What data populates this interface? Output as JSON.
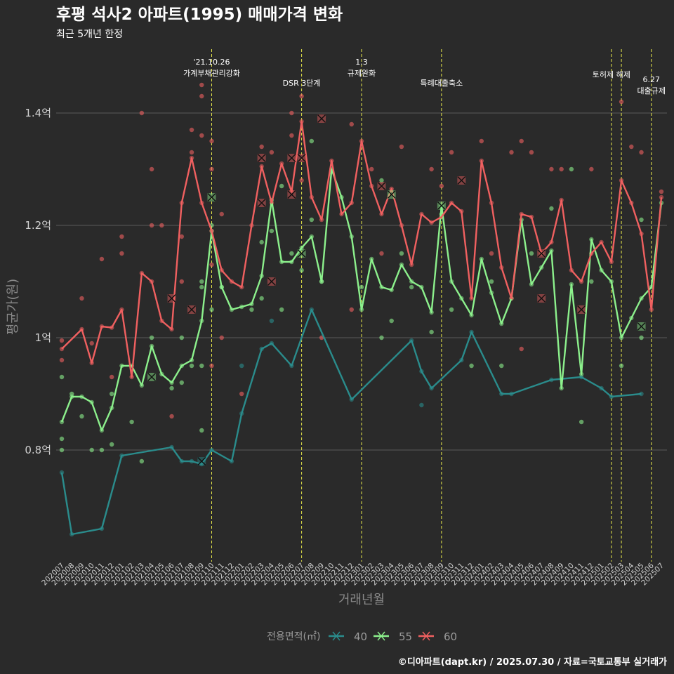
{
  "chart_data": {
    "type": "line",
    "title": "후평 석사2 아파트(1995) 매매가격 변화",
    "subtitle": "최근 5개년 한정",
    "xlabel": "거래년월",
    "ylabel": "평균가(원)",
    "ylim": [
      0.61,
      1.5
    ],
    "y_ticks": [
      {
        "value": 0.8,
        "label": "0.8억"
      },
      {
        "value": 1.0,
        "label": "1억"
      },
      {
        "value": 1.2,
        "label": "1.2억"
      },
      {
        "value": 1.4,
        "label": "1.4억"
      }
    ],
    "grid": true,
    "categories": [
      "202007",
      "202008",
      "202009",
      "202010",
      "202011",
      "202012",
      "202101",
      "202102",
      "202103",
      "202104",
      "202105",
      "202106",
      "202107",
      "202108",
      "202109",
      "202110",
      "202111",
      "202112",
      "202201",
      "202202",
      "202203",
      "202204",
      "202205",
      "202206",
      "202207",
      "202208",
      "202209",
      "202210",
      "202211",
      "202212",
      "202301",
      "202302",
      "202303",
      "202304",
      "202305",
      "202306",
      "202307",
      "202308",
      "202309",
      "202310",
      "202311",
      "202312",
      "202401",
      "202402",
      "202403",
      "202404",
      "202405",
      "202406",
      "202407",
      "202408",
      "202409",
      "202410",
      "202411",
      "202412",
      "202501",
      "202502",
      "202503",
      "202504",
      "202505",
      "202506",
      "202507"
    ],
    "legend_title": "전용면적(㎡)",
    "legend_position": "bottom",
    "series": [
      {
        "name": "40",
        "color": "#2a8c8c",
        "x": [
          "202007",
          "202008",
          "202011",
          "202101",
          "202106",
          "202107",
          "202108",
          "202109",
          "202110",
          "202112",
          "202201",
          "202203",
          "202204",
          "202206",
          "202208",
          "202212",
          "202306",
          "202307",
          "202308",
          "202311",
          "202312",
          "202403",
          "202404",
          "202408",
          "202411",
          "202501",
          "202502",
          "202505"
        ],
        "values": [
          0.76,
          0.65,
          0.66,
          0.79,
          0.805,
          0.78,
          0.78,
          0.775,
          0.8,
          0.78,
          0.865,
          0.98,
          0.99,
          0.95,
          1.05,
          0.89,
          0.995,
          0.94,
          0.91,
          0.96,
          1.01,
          0.9,
          0.9,
          0.925,
          0.93,
          0.91,
          0.895,
          0.9
        ]
      },
      {
        "name": "55",
        "color": "#8cf08c",
        "x": [
          "202007",
          "202008",
          "202009",
          "202010",
          "202011",
          "202012",
          "202101",
          "202102",
          "202103",
          "202104",
          "202105",
          "202106",
          "202107",
          "202108",
          "202109",
          "202110",
          "202111",
          "202112",
          "202201",
          "202202",
          "202203",
          "202204",
          "202205",
          "202206",
          "202207",
          "202208",
          "202209",
          "202210",
          "202211",
          "202212",
          "202301",
          "202302",
          "202303",
          "202304",
          "202305",
          "202306",
          "202307",
          "202308",
          "202309",
          "202310",
          "202311",
          "202312",
          "202401",
          "202402",
          "202403",
          "202404",
          "202405",
          "202406",
          "202407",
          "202408",
          "202409",
          "202410",
          "202411",
          "202412",
          "202501",
          "202502",
          "202503",
          "202504",
          "202505",
          "202506",
          "202507"
        ],
        "values": [
          0.85,
          0.895,
          0.895,
          0.885,
          0.835,
          0.875,
          0.95,
          0.95,
          0.915,
          0.985,
          0.935,
          0.92,
          0.95,
          0.96,
          1.03,
          1.19,
          1.09,
          1.05,
          1.055,
          1.06,
          1.11,
          1.245,
          1.135,
          1.135,
          1.16,
          1.18,
          1.1,
          1.3,
          1.25,
          1.18,
          1.05,
          1.14,
          1.09,
          1.085,
          1.13,
          1.1,
          1.09,
          1.045,
          1.235,
          1.1,
          1.07,
          1.04,
          1.14,
          1.08,
          1.025,
          1.07,
          1.21,
          1.095,
          1.125,
          1.155,
          0.91,
          1.095,
          0.935,
          1.175,
          1.12,
          1.1,
          1.0,
          1.035,
          1.07,
          1.09,
          1.24
        ]
      },
      {
        "name": "60",
        "color": "#f06060",
        "x": [
          "202007",
          "202009",
          "202010",
          "202011",
          "202012",
          "202101",
          "202102",
          "202103",
          "202104",
          "202105",
          "202106",
          "202107",
          "202108",
          "202109",
          "202110",
          "202111",
          "202112",
          "202201",
          "202202",
          "202203",
          "202204",
          "202205",
          "202206",
          "202207",
          "202208",
          "202209",
          "202210",
          "202211",
          "202212",
          "202301",
          "202302",
          "202303",
          "202304",
          "202305",
          "202306",
          "202307",
          "202308",
          "202309",
          "202310",
          "202311",
          "202312",
          "202401",
          "202402",
          "202403",
          "202404",
          "202405",
          "202406",
          "202407",
          "202408",
          "202409",
          "202410",
          "202411",
          "202412",
          "202501",
          "202502",
          "202503",
          "202504",
          "202505",
          "202506",
          "202507"
        ],
        "values": [
          0.98,
          1.015,
          0.955,
          1.02,
          1.018,
          1.05,
          0.93,
          1.115,
          1.1,
          1.03,
          1.015,
          1.24,
          1.32,
          1.24,
          1.19,
          1.12,
          1.1,
          1.09,
          1.2,
          1.305,
          1.24,
          1.31,
          1.26,
          1.385,
          1.25,
          1.21,
          1.315,
          1.22,
          1.24,
          1.35,
          1.27,
          1.22,
          1.265,
          1.2,
          1.13,
          1.22,
          1.205,
          1.215,
          1.24,
          1.225,
          1.07,
          1.315,
          1.24,
          1.125,
          1.07,
          1.22,
          1.215,
          1.15,
          1.17,
          1.245,
          1.12,
          1.1,
          1.15,
          1.17,
          1.135,
          1.28,
          1.24,
          1.185,
          1.05,
          1.25
        ]
      }
    ],
    "markers": [
      {
        "series": "40",
        "x": "202109",
        "y": 0.78
      },
      {
        "series": "55",
        "x": "202104",
        "y": 0.93
      },
      {
        "series": "55",
        "x": "202110",
        "y": 1.25
      },
      {
        "series": "55",
        "x": "202207",
        "y": 1.15
      },
      {
        "series": "55",
        "x": "202304",
        "y": 1.255
      },
      {
        "series": "55",
        "x": "202309",
        "y": 1.235
      },
      {
        "series": "55",
        "x": "202505",
        "y": 1.02
      },
      {
        "series": "60",
        "x": "202106",
        "y": 1.07
      },
      {
        "series": "60",
        "x": "202108",
        "y": 1.05
      },
      {
        "series": "60",
        "x": "202203",
        "y": 1.24
      },
      {
        "series": "60",
        "x": "202203",
        "y": 1.32
      },
      {
        "series": "60",
        "x": "202204",
        "y": 1.1
      },
      {
        "series": "60",
        "x": "202206",
        "y": 1.255
      },
      {
        "series": "60",
        "x": "202206",
        "y": 1.32
      },
      {
        "series": "60",
        "x": "202207",
        "y": 1.32
      },
      {
        "series": "60",
        "x": "202209",
        "y": 1.39
      },
      {
        "series": "60",
        "x": "202303",
        "y": 1.27
      },
      {
        "series": "60",
        "x": "202311",
        "y": 1.28
      },
      {
        "series": "60",
        "x": "202407",
        "y": 1.15
      },
      {
        "series": "60",
        "x": "202407",
        "y": 1.07
      },
      {
        "series": "60",
        "x": "202411",
        "y": 1.05
      }
    ],
    "scatter": [
      {
        "series": "40",
        "x": "202307",
        "y": 0.88
      },
      {
        "series": "40",
        "x": "202201",
        "y": 0.95
      },
      {
        "series": "40",
        "x": "202204",
        "y": 1.03
      },
      {
        "series": "55",
        "x": "202007",
        "y": 0.93
      },
      {
        "series": "55",
        "x": "202007",
        "y": 0.82
      },
      {
        "series": "55",
        "x": "202007",
        "y": 0.8
      },
      {
        "series": "55",
        "x": "202008",
        "y": 0.9
      },
      {
        "series": "55",
        "x": "202009",
        "y": 0.86
      },
      {
        "series": "55",
        "x": "202010",
        "y": 0.8
      },
      {
        "series": "55",
        "x": "202011",
        "y": 0.8
      },
      {
        "series": "55",
        "x": "202012",
        "y": 0.9
      },
      {
        "series": "55",
        "x": "202012",
        "y": 0.81
      },
      {
        "series": "55",
        "x": "202102",
        "y": 0.85
      },
      {
        "series": "55",
        "x": "202103",
        "y": 0.78
      },
      {
        "series": "55",
        "x": "202104",
        "y": 1.0
      },
      {
        "series": "55",
        "x": "202106",
        "y": 0.91
      },
      {
        "series": "55",
        "x": "202107",
        "y": 0.92
      },
      {
        "series": "55",
        "x": "202107",
        "y": 1.0
      },
      {
        "series": "55",
        "x": "202108",
        "y": 0.95
      },
      {
        "series": "55",
        "x": "202109",
        "y": 1.09
      },
      {
        "series": "55",
        "x": "202109",
        "y": 1.1
      },
      {
        "series": "55",
        "x": "202109",
        "y": 0.95
      },
      {
        "series": "55",
        "x": "202109",
        "y": 0.835
      },
      {
        "series": "55",
        "x": "202110",
        "y": 1.05
      },
      {
        "series": "55",
        "x": "202110",
        "y": 1.2
      },
      {
        "series": "55",
        "x": "202111",
        "y": 1.09
      },
      {
        "series": "55",
        "x": "202202",
        "y": 1.05
      },
      {
        "series": "55",
        "x": "202203",
        "y": 1.07
      },
      {
        "series": "55",
        "x": "202203",
        "y": 1.17
      },
      {
        "series": "55",
        "x": "202204",
        "y": 1.19
      },
      {
        "series": "55",
        "x": "202205",
        "y": 1.27
      },
      {
        "series": "55",
        "x": "202205",
        "y": 1.05
      },
      {
        "series": "55",
        "x": "202206",
        "y": 1.15
      },
      {
        "series": "55",
        "x": "202207",
        "y": 1.12
      },
      {
        "series": "55",
        "x": "202208",
        "y": 1.21
      },
      {
        "series": "55",
        "x": "202208",
        "y": 1.35
      },
      {
        "series": "55",
        "x": "202209",
        "y": 1.1
      },
      {
        "series": "55",
        "x": "202301",
        "y": 1.09
      },
      {
        "series": "55",
        "x": "202303",
        "y": 1.28
      },
      {
        "series": "55",
        "x": "202303",
        "y": 1.0
      },
      {
        "series": "55",
        "x": "202304",
        "y": 1.03
      },
      {
        "series": "55",
        "x": "202305",
        "y": 1.15
      },
      {
        "series": "55",
        "x": "202306",
        "y": 1.09
      },
      {
        "series": "55",
        "x": "202308",
        "y": 1.01
      },
      {
        "series": "55",
        "x": "202309",
        "y": 1.22
      },
      {
        "series": "55",
        "x": "202310",
        "y": 1.05
      },
      {
        "series": "55",
        "x": "202312",
        "y": 0.95
      },
      {
        "series": "55",
        "x": "202402",
        "y": 1.1
      },
      {
        "series": "55",
        "x": "202403",
        "y": 0.95
      },
      {
        "series": "55",
        "x": "202406",
        "y": 1.15
      },
      {
        "series": "55",
        "x": "202408",
        "y": 1.23
      },
      {
        "series": "55",
        "x": "202410",
        "y": 1.3
      },
      {
        "series": "55",
        "x": "202411",
        "y": 0.85
      },
      {
        "series": "55",
        "x": "202412",
        "y": 1.1
      },
      {
        "series": "55",
        "x": "202503",
        "y": 0.95
      },
      {
        "series": "55",
        "x": "202505",
        "y": 1.21
      },
      {
        "series": "55",
        "x": "202505",
        "y": 1.0
      },
      {
        "series": "60",
        "x": "202007",
        "y": 0.96
      },
      {
        "series": "60",
        "x": "202007",
        "y": 0.995
      },
      {
        "series": "60",
        "x": "202009",
        "y": 1.07
      },
      {
        "series": "60",
        "x": "202010",
        "y": 0.99
      },
      {
        "series": "60",
        "x": "202011",
        "y": 1.14
      },
      {
        "series": "60",
        "x": "202012",
        "y": 0.93
      },
      {
        "series": "60",
        "x": "202101",
        "y": 1.18
      },
      {
        "series": "60",
        "x": "202101",
        "y": 1.15
      },
      {
        "series": "60",
        "x": "202103",
        "y": 1.4
      },
      {
        "series": "60",
        "x": "202104",
        "y": 1.3
      },
      {
        "series": "60",
        "x": "202104",
        "y": 1.2
      },
      {
        "series": "60",
        "x": "202105",
        "y": 1.2
      },
      {
        "series": "60",
        "x": "202106",
        "y": 0.86
      },
      {
        "series": "60",
        "x": "202107",
        "y": 1.1
      },
      {
        "series": "60",
        "x": "202107",
        "y": 1.18
      },
      {
        "series": "60",
        "x": "202108",
        "y": 1.37
      },
      {
        "series": "60",
        "x": "202108",
        "y": 1.33
      },
      {
        "series": "60",
        "x": "202109",
        "y": 1.45
      },
      {
        "series": "60",
        "x": "202109",
        "y": 1.43
      },
      {
        "series": "60",
        "x": "202109",
        "y": 1.36
      },
      {
        "series": "60",
        "x": "202110",
        "y": 1.35
      },
      {
        "series": "60",
        "x": "202110",
        "y": 1.3
      },
      {
        "series": "60",
        "x": "202110",
        "y": 1.13
      },
      {
        "series": "60",
        "x": "202110",
        "y": 0.95
      },
      {
        "series": "60",
        "x": "202111",
        "y": 1.22
      },
      {
        "series": "60",
        "x": "202111",
        "y": 1.0
      },
      {
        "series": "60",
        "x": "202201",
        "y": 0.9
      },
      {
        "series": "60",
        "x": "202203",
        "y": 1.34
      },
      {
        "series": "60",
        "x": "202204",
        "y": 1.33
      },
      {
        "series": "60",
        "x": "202206",
        "y": 1.4
      },
      {
        "series": "60",
        "x": "202206",
        "y": 1.36
      },
      {
        "series": "60",
        "x": "202207",
        "y": 1.43
      },
      {
        "series": "60",
        "x": "202207",
        "y": 1.28
      },
      {
        "series": "60",
        "x": "202209",
        "y": 1.0
      },
      {
        "series": "60",
        "x": "202212",
        "y": 1.38
      },
      {
        "series": "60",
        "x": "202212",
        "y": 1.05
      },
      {
        "series": "60",
        "x": "202302",
        "y": 1.3
      },
      {
        "series": "60",
        "x": "202303",
        "y": 1.15
      },
      {
        "series": "60",
        "x": "202305",
        "y": 1.34
      },
      {
        "series": "60",
        "x": "202308",
        "y": 1.3
      },
      {
        "series": "60",
        "x": "202309",
        "y": 1.27
      },
      {
        "series": "60",
        "x": "202310",
        "y": 1.33
      },
      {
        "series": "60",
        "x": "202401",
        "y": 1.35
      },
      {
        "series": "60",
        "x": "202402",
        "y": 1.15
      },
      {
        "series": "60",
        "x": "202404",
        "y": 1.33
      },
      {
        "series": "60",
        "x": "202405",
        "y": 1.35
      },
      {
        "series": "60",
        "x": "202405",
        "y": 0.98
      },
      {
        "series": "60",
        "x": "202406",
        "y": 1.33
      },
      {
        "series": "60",
        "x": "202408",
        "y": 1.3
      },
      {
        "series": "60",
        "x": "202409",
        "y": 1.3
      },
      {
        "series": "60",
        "x": "202412",
        "y": 1.3
      },
      {
        "series": "60",
        "x": "202503",
        "y": 1.42
      },
      {
        "series": "60",
        "x": "202504",
        "y": 1.34
      },
      {
        "series": "60",
        "x": "202505",
        "y": 1.33
      },
      {
        "series": "60",
        "x": "202507",
        "y": 1.26
      }
    ],
    "events": [
      {
        "x": "202110",
        "label_lines": [
          "'21.10.26",
          "가계부채관리강화"
        ],
        "level": 0
      },
      {
        "x": "202207",
        "label_lines": [
          "DSR 3단계"
        ],
        "level": 2
      },
      {
        "x": "202301",
        "label_lines": [
          "1.3",
          "규제완화"
        ],
        "level": 0
      },
      {
        "x": "202309",
        "label_lines": [
          "특례대출축소"
        ],
        "level": 2
      },
      {
        "x": "202502",
        "label_lines": [
          "토허제 해제"
        ],
        "level": 1
      },
      {
        "x": "202503",
        "label_lines": [],
        "level": 1
      },
      {
        "x": "202506",
        "label_lines": [
          "6.27",
          "대출규제"
        ],
        "level": 3
      }
    ]
  },
  "footer": {
    "caption": "©디아파트(dapt.kr) / 2025.07.30 / 자료=국토교통부 실거래가"
  }
}
